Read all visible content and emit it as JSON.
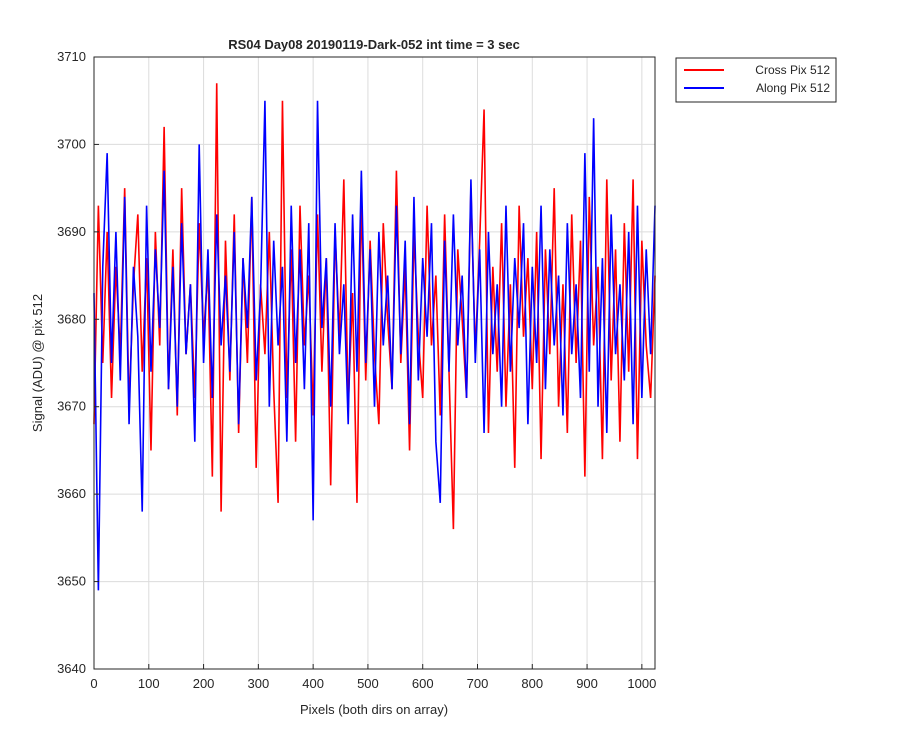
{
  "chart_data": {
    "type": "line",
    "title": "RS04 Day08 20190119-Dark-052 int time = 3 sec",
    "x_label": "Pixels (both dirs on array)",
    "y_label": "Signal (ADU) @ pix 512",
    "x": [
      0,
      8,
      16,
      24,
      32,
      40,
      48,
      56,
      64,
      72,
      80,
      88,
      96,
      104,
      112,
      120,
      128,
      136,
      144,
      152,
      160,
      168,
      176,
      184,
      192,
      200,
      208,
      216,
      224,
      232,
      240,
      248,
      256,
      264,
      272,
      280,
      288,
      296,
      304,
      312,
      320,
      328,
      336,
      344,
      352,
      360,
      368,
      376,
      384,
      392,
      400,
      408,
      416,
      424,
      432,
      440,
      448,
      456,
      464,
      472,
      480,
      488,
      496,
      504,
      512,
      520,
      528,
      536,
      544,
      552,
      560,
      568,
      576,
      584,
      592,
      600,
      608,
      616,
      624,
      632,
      640,
      648,
      656,
      664,
      672,
      680,
      688,
      696,
      704,
      712,
      720,
      728,
      736,
      744,
      752,
      760,
      768,
      776,
      784,
      792,
      800,
      808,
      816,
      824,
      832,
      840,
      848,
      856,
      864,
      872,
      880,
      888,
      896,
      904,
      912,
      920,
      928,
      936,
      944,
      952,
      960,
      968,
      976,
      984,
      992,
      1000,
      1008,
      1016,
      1024
    ],
    "series": [
      {
        "name": "Cross Pix 512",
        "color": "#ff0000",
        "values": [
          3668,
          3693,
          3675,
          3690,
          3671,
          3686,
          3676,
          3695,
          3670,
          3684,
          3692,
          3674,
          3687,
          3665,
          3690,
          3677,
          3702,
          3672,
          3688,
          3669,
          3695,
          3676,
          3684,
          3671,
          3691,
          3678,
          3686,
          3662,
          3707,
          3658,
          3689,
          3673,
          3692,
          3667,
          3687,
          3675,
          3694,
          3663,
          3684,
          3676,
          3690,
          3672,
          3659,
          3705,
          3671,
          3688,
          3666,
          3693,
          3677,
          3685,
          3669,
          3692,
          3674,
          3687,
          3661,
          3690,
          3678,
          3696,
          3670,
          3683,
          3659,
          3694,
          3673,
          3689,
          3676,
          3668,
          3691,
          3680,
          3672,
          3697,
          3675,
          3686,
          3665,
          3690,
          3678,
          3671,
          3693,
          3677,
          3685,
          3669,
          3692,
          3674,
          3656,
          3688,
          3680,
          3671,
          3695,
          3676,
          3689,
          3704,
          3667,
          3686,
          3674,
          3691,
          3670,
          3684,
          3663,
          3693,
          3678,
          3687,
          3672,
          3690,
          3664,
          3688,
          3676,
          3695,
          3670,
          3684,
          3667,
          3692,
          3675,
          3689,
          3662,
          3694,
          3677,
          3686,
          3664,
          3696,
          3673,
          3688,
          3666,
          3691,
          3674,
          3696,
          3664,
          3689,
          3677,
          3671,
          3685
        ]
      },
      {
        "name": "Along Pix 512",
        "color": "#0000ff",
        "values": [
          3683,
          3649,
          3686,
          3699,
          3675,
          3690,
          3673,
          3694,
          3668,
          3686,
          3678,
          3658,
          3693,
          3674,
          3688,
          3679,
          3697,
          3672,
          3686,
          3670,
          3691,
          3676,
          3684,
          3666,
          3700,
          3675,
          3688,
          3671,
          3692,
          3677,
          3685,
          3674,
          3690,
          3668,
          3687,
          3679,
          3694,
          3673,
          3683,
          3705,
          3670,
          3689,
          3677,
          3686,
          3666,
          3693,
          3675,
          3688,
          3672,
          3691,
          3657,
          3705,
          3679,
          3687,
          3670,
          3691,
          3676,
          3684,
          3668,
          3692,
          3674,
          3697,
          3675,
          3688,
          3670,
          3690,
          3677,
          3685,
          3672,
          3693,
          3676,
          3689,
          3668,
          3694,
          3673,
          3687,
          3678,
          3691,
          3666,
          3659,
          3689,
          3674,
          3692,
          3677,
          3685,
          3671,
          3696,
          3675,
          3688,
          3667,
          3690,
          3676,
          3684,
          3670,
          3693,
          3674,
          3687,
          3679,
          3691,
          3668,
          3686,
          3675,
          3693,
          3672,
          3688,
          3677,
          3685,
          3669,
          3691,
          3676,
          3684,
          3671,
          3699,
          3674,
          3703,
          3670,
          3687,
          3667,
          3692,
          3676,
          3684,
          3673,
          3690,
          3668,
          3693,
          3671,
          3688,
          3676,
          3693
        ]
      }
    ],
    "xlim": [
      0,
      1024
    ],
    "xticks": [
      0,
      100,
      200,
      300,
      400,
      500,
      600,
      700,
      800,
      900,
      1000
    ],
    "ylim": [
      3640,
      3710
    ],
    "yticks": [
      3640,
      3650,
      3660,
      3670,
      3680,
      3690,
      3700,
      3710
    ],
    "grid": true,
    "legend": "outside-right"
  }
}
